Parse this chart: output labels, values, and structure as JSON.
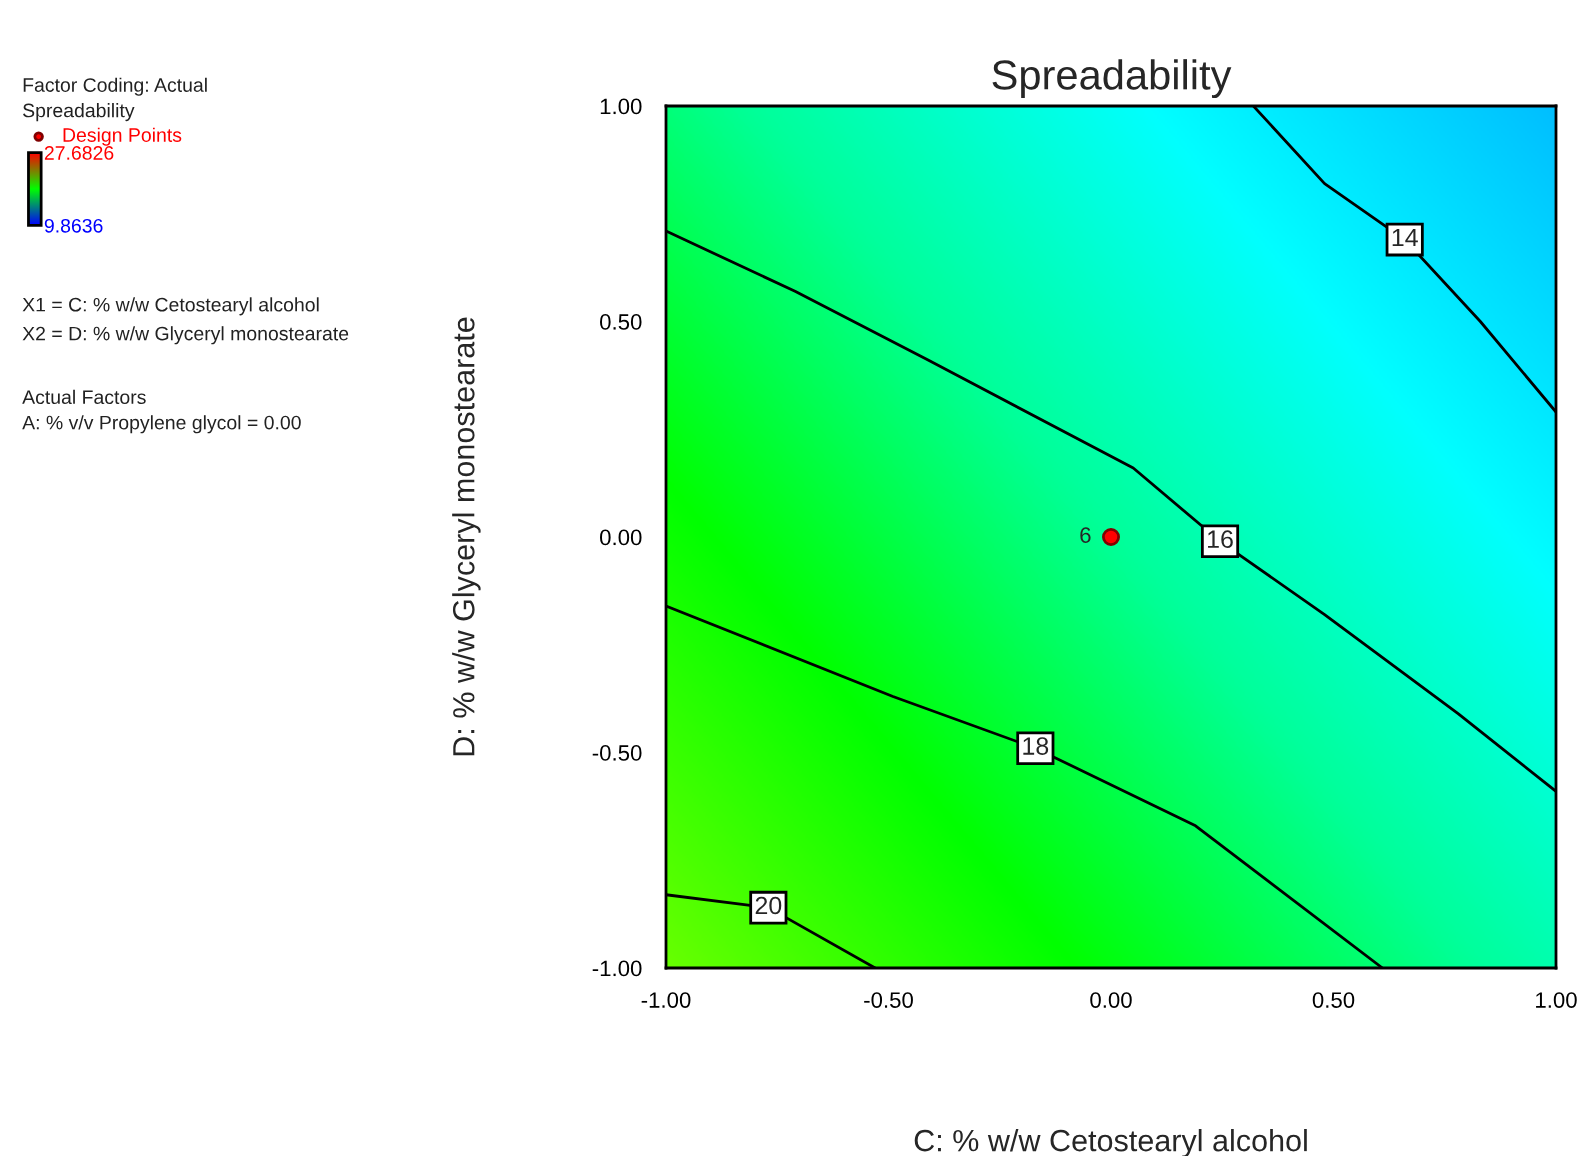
{
  "chart_data": {
    "type": "line",
    "title": "Spreadability",
    "xlabel": "C: % w/w Cetostearyl alcohol",
    "ylabel": "D: % w/w Glyceryl monostearate",
    "xlim": [
      -1,
      1
    ],
    "ylim": [
      -1,
      1
    ],
    "xticks": [
      {
        "value": -1,
        "label": "-1.00"
      },
      {
        "value": -0.5,
        "label": "-0.50"
      },
      {
        "value": 0,
        "label": "0.00"
      },
      {
        "value": 0.5,
        "label": "0.50"
      },
      {
        "value": 1,
        "label": "1.00"
      }
    ],
    "yticks": [
      {
        "value": -1,
        "label": "-1.00"
      },
      {
        "value": -0.5,
        "label": "-0.50"
      },
      {
        "value": 0,
        "label": "0.00"
      },
      {
        "value": 0.5,
        "label": "0.50"
      },
      {
        "value": 1,
        "label": "1.00"
      }
    ],
    "grid": false,
    "legend": "left",
    "clabel": "Spreadability",
    "clim": [
      9.8636,
      27.6826
    ],
    "cticks": [
      9.8636,
      27.6826
    ],
    "series": [
      {
        "name": "14",
        "color": "#000000",
        "x": [
          0.32,
          0.48,
          0.66,
          0.83,
          1.0
        ],
        "values": [
          1.0,
          0.82,
          0.69,
          0.5,
          0.29
        ]
      },
      {
        "name": "16",
        "color": "#000000",
        "x": [
          -1.0,
          -0.71,
          -0.41,
          0.05,
          0.245,
          0.48,
          0.78,
          1.0
        ],
        "values": [
          0.71,
          0.57,
          0.41,
          0.16,
          -0.01,
          -0.18,
          -0.41,
          -0.59
        ]
      },
      {
        "name": "18",
        "color": "#000000",
        "x": [
          -1.0,
          -0.49,
          -0.17,
          0.19,
          0.61
        ],
        "values": [
          -0.16,
          -0.37,
          -0.49,
          -0.67,
          -1.0
        ]
      },
      {
        "name": "20",
        "color": "#000000",
        "x": [
          -1.0,
          -0.77,
          -0.53
        ],
        "values": [
          -0.83,
          -0.86,
          -1.0
        ]
      },
      {
        "name": "Design Points",
        "type": "scatter",
        "color": "#ff0000",
        "x": [
          0
        ],
        "values": [
          0
        ]
      }
    ],
    "annotations": [
      "Factor Coding: Actual",
      {
        "text": "6",
        "x": 0,
        "y": 0
      },
      "X1 = C: % w/w Cetostearyl alcohol",
      "X2 = D: % w/w Glyceryl monostearate",
      "Actual Factors",
      "A: % v/v Propylene glycol = 0.00"
    ]
  }
}
